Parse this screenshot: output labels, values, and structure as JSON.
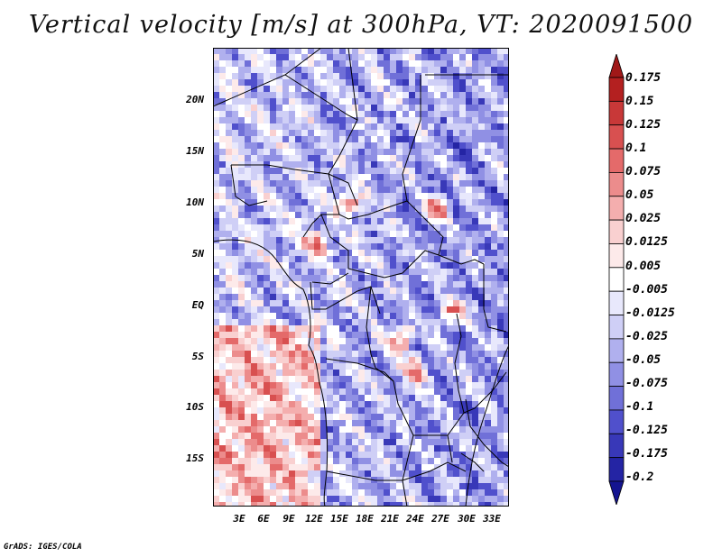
{
  "title": "Vertical velocity [m/s] at 300hPa, VT: 2020091500",
  "lat_labels": [
    "20N",
    "15N",
    "10N",
    "5N",
    "EQ",
    "5S",
    "10S",
    "15S"
  ],
  "lon_labels": [
    "3E",
    "6E",
    "9E",
    "12E",
    "15E",
    "18E",
    "21E",
    "24E",
    "27E",
    "30E",
    "33E"
  ],
  "colorbar": {
    "levels": [
      "0.175",
      "0.15",
      "0.125",
      "0.1",
      "0.075",
      "0.05",
      "0.025",
      "0.0125",
      "0.005",
      "-0.005",
      "-0.0125",
      "-0.025",
      "-0.05",
      "-0.075",
      "-0.1",
      "-0.125",
      "-0.175",
      "-0.2"
    ],
    "colors": [
      "#a01818",
      "#b42020",
      "#c83838",
      "#d85050",
      "#e46a6a",
      "#ec8c8c",
      "#f4aeae",
      "#f9d0d0",
      "#fdeaea",
      "#ffffff",
      "#e8e8fc",
      "#cfcff6",
      "#b0b0ee",
      "#9090e4",
      "#7070d8",
      "#5050cc",
      "#3838b8",
      "#2424a4",
      "#141490"
    ]
  },
  "credit": "GrADS: IGES/COLA"
}
